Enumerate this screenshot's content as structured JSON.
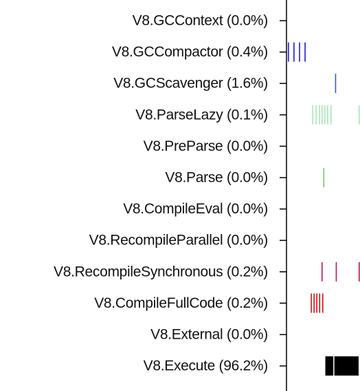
{
  "chart_data": {
    "type": "timeline",
    "title": "",
    "xlabel": "",
    "ylabel": "",
    "grid": false,
    "rows": [
      {
        "name": "V8.GCContext",
        "percent_label": "(0.0%)",
        "color": "#000000",
        "events": []
      },
      {
        "name": "V8.GCCompactor",
        "percent_label": "(0.4%)",
        "color": "#1a1ad4",
        "events": [
          {
            "start": 0.2,
            "duration": 0.12
          },
          {
            "start": 1.8,
            "duration": 0.12
          },
          {
            "start": 3.4,
            "duration": 0.12
          },
          {
            "start": 5.0,
            "duration": 0.12
          }
        ]
      },
      {
        "name": "V8.GCScavenger",
        "percent_label": "(1.6%)",
        "color": "#3355dd",
        "events": [
          {
            "start": 13.8,
            "duration": 0.2
          }
        ]
      },
      {
        "name": "V8.ParseLazy",
        "percent_label": "(0.1%)",
        "color": "#a6e8b8",
        "events": [
          {
            "start": 7.2,
            "duration": 0.2
          },
          {
            "start": 8.2,
            "duration": 0.2
          },
          {
            "start": 9.2,
            "duration": 0.15
          },
          {
            "start": 9.9,
            "duration": 0.15
          },
          {
            "start": 10.7,
            "duration": 0.15
          },
          {
            "start": 11.5,
            "duration": 0.12
          },
          {
            "start": 12.5,
            "duration": 0.12
          },
          {
            "start": 20.6,
            "duration": 0.12
          }
        ]
      },
      {
        "name": "V8.PreParse",
        "percent_label": "(0.0%)",
        "color": "#000000",
        "events": []
      },
      {
        "name": "V8.Parse",
        "percent_label": "(0.0%)",
        "color": "#66cc66",
        "events": [
          {
            "start": 10.4,
            "duration": 0.2
          }
        ]
      },
      {
        "name": "V8.CompileEval",
        "percent_label": "(0.0%)",
        "color": "#000000",
        "events": []
      },
      {
        "name": "V8.RecompileParallel",
        "percent_label": "(0.0%)",
        "color": "#000000",
        "events": []
      },
      {
        "name": "V8.RecompileSynchronous",
        "percent_label": "(0.2%)",
        "color": "#cc1144",
        "events": [
          {
            "start": 9.9,
            "duration": 0.25
          },
          {
            "start": 14.0,
            "duration": 0.2
          },
          {
            "start": 20.6,
            "duration": 0.15
          }
        ]
      },
      {
        "name": "V8.CompileFullCode",
        "percent_label": "(0.2%)",
        "color": "#cc1111",
        "events": [
          {
            "start": 6.8,
            "duration": 0.3
          },
          {
            "start": 7.6,
            "duration": 0.15
          },
          {
            "start": 8.4,
            "duration": 0.15
          },
          {
            "start": 9.2,
            "duration": 0.15
          },
          {
            "start": 10.1,
            "duration": 0.15
          }
        ]
      },
      {
        "name": "V8.External",
        "percent_label": "(0.0%)",
        "color": "#000000",
        "events": []
      },
      {
        "name": "V8.Execute",
        "percent_label": "(96.2%)",
        "color": "#000000",
        "events": [
          {
            "start": 11.0,
            "duration": 2.3
          },
          {
            "start": 13.6,
            "duration": 7.0
          }
        ]
      }
    ],
    "xlim": [
      0,
      21
    ]
  }
}
